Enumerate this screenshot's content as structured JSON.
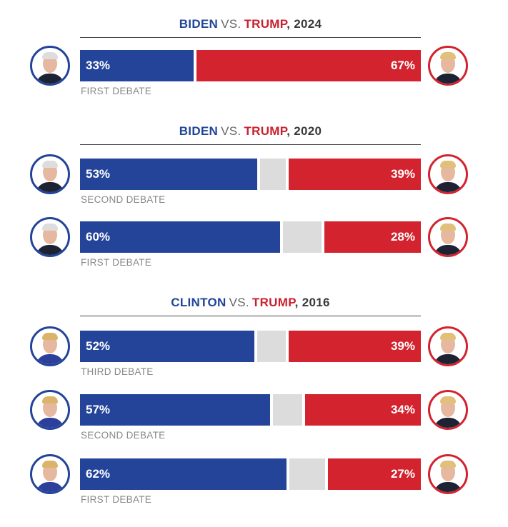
{
  "colors": {
    "blue": "#24449a",
    "red": "#d2232e",
    "gray": "#dcdcdc",
    "title_blue": "#1f4597",
    "title_red": "#c9202e"
  },
  "chart_data": {
    "type": "bar",
    "orientation": "horizontal-stacked",
    "sections": [
      {
        "left": "BIDEN",
        "vs": "VS.",
        "right": "TRUMP",
        "year": ", 2024",
        "rows": [
          {
            "label": "FIRST DEBATE",
            "dem": 33,
            "rep": 67,
            "dem_label": "33%",
            "rep_label": "67%",
            "candidate": "biden"
          }
        ]
      },
      {
        "left": "BIDEN",
        "vs": "VS.",
        "right": "TRUMP",
        "year": ", 2020",
        "rows": [
          {
            "label": "SECOND DEBATE",
            "dem": 53,
            "rep": 39,
            "dem_label": "53%",
            "rep_label": "39%",
            "candidate": "biden"
          },
          {
            "label": "FIRST DEBATE",
            "dem": 60,
            "rep": 28,
            "dem_label": "60%",
            "rep_label": "28%",
            "candidate": "biden"
          }
        ]
      },
      {
        "left": "CLINTON",
        "vs": "VS.",
        "right": "TRUMP",
        "year": ", 2016",
        "rows": [
          {
            "label": "THIRD DEBATE",
            "dem": 52,
            "rep": 39,
            "dem_label": "52%",
            "rep_label": "39%",
            "candidate": "clinton"
          },
          {
            "label": "SECOND DEBATE",
            "dem": 57,
            "rep": 34,
            "dem_label": "57%",
            "rep_label": "34%",
            "candidate": "clinton"
          },
          {
            "label": "FIRST DEBATE",
            "dem": 62,
            "rep": 27,
            "dem_label": "62%",
            "rep_label": "27%",
            "candidate": "clinton"
          }
        ]
      }
    ]
  }
}
